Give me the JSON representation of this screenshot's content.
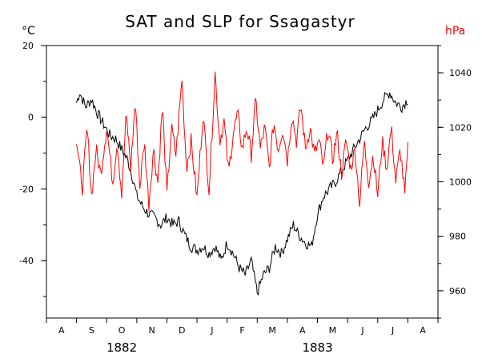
{
  "chart_data": {
    "type": "line",
    "title": "SAT and SLP for Ssagastyr",
    "y_left_unit": "°C",
    "y_right_unit": "hPa",
    "y_left_ticks": [
      20,
      0,
      -20,
      -40
    ],
    "y_right_ticks": [
      1040,
      1020,
      1000,
      980,
      960
    ],
    "ylim_left": [
      -56,
      20
    ],
    "ylim_right": [
      950,
      1050
    ],
    "x_month_labels": [
      "A",
      "S",
      "O",
      "N",
      "D",
      "J",
      "F",
      "M",
      "A",
      "M",
      "J",
      "J",
      "A"
    ],
    "x_year_labels": [
      "1882",
      "1883"
    ],
    "colors": {
      "SAT": "#000000",
      "SLP": "#ff0000"
    },
    "series": [
      {
        "key": "SAT",
        "axis": "left",
        "color": "#000000",
        "x_start_month": 1.0,
        "x_end_month": 12.0,
        "anchors": [
          [
            1.0,
            4
          ],
          [
            1.1,
            7
          ],
          [
            1.3,
            3
          ],
          [
            1.5,
            5
          ],
          [
            1.7,
            1
          ],
          [
            1.9,
            -2
          ],
          [
            2.1,
            -5
          ],
          [
            2.3,
            -6
          ],
          [
            2.5,
            -9
          ],
          [
            2.7,
            -12
          ],
          [
            2.9,
            -18
          ],
          [
            3.0,
            -22
          ],
          [
            3.2,
            -25
          ],
          [
            3.4,
            -27
          ],
          [
            3.6,
            -28
          ],
          [
            3.8,
            -30
          ],
          [
            4.0,
            -28
          ],
          [
            4.2,
            -30
          ],
          [
            4.4,
            -29
          ],
          [
            4.6,
            -33
          ],
          [
            4.8,
            -36
          ],
          [
            5.0,
            -37
          ],
          [
            5.2,
            -36
          ],
          [
            5.4,
            -38
          ],
          [
            5.6,
            -36
          ],
          [
            5.8,
            -40
          ],
          [
            6.0,
            -35
          ],
          [
            6.2,
            -38
          ],
          [
            6.4,
            -42
          ],
          [
            6.6,
            -44
          ],
          [
            6.8,
            -40
          ],
          [
            7.0,
            -49
          ],
          [
            7.2,
            -44
          ],
          [
            7.4,
            -42
          ],
          [
            7.6,
            -36
          ],
          [
            7.8,
            -38
          ],
          [
            8.0,
            -34
          ],
          [
            8.2,
            -30
          ],
          [
            8.4,
            -33
          ],
          [
            8.6,
            -35
          ],
          [
            8.8,
            -36
          ],
          [
            9.0,
            -27
          ],
          [
            9.2,
            -22
          ],
          [
            9.4,
            -20
          ],
          [
            9.6,
            -18
          ],
          [
            9.8,
            -15
          ],
          [
            10.0,
            -12
          ],
          [
            10.2,
            -9
          ],
          [
            10.4,
            -6
          ],
          [
            10.6,
            -3
          ],
          [
            10.8,
            -1
          ],
          [
            11.0,
            2
          ],
          [
            11.2,
            5
          ],
          [
            11.4,
            7
          ],
          [
            11.6,
            4
          ],
          [
            11.8,
            3
          ],
          [
            12.0,
            5
          ]
        ]
      },
      {
        "key": "SLP",
        "axis": "right",
        "color": "#ff0000",
        "x_start_month": 1.0,
        "x_end_month": 12.0,
        "anchors": [
          [
            1.0,
            1015
          ],
          [
            1.1,
            1005
          ],
          [
            1.2,
            998
          ],
          [
            1.35,
            1020
          ],
          [
            1.5,
            995
          ],
          [
            1.65,
            1012
          ],
          [
            1.8,
            1003
          ],
          [
            2.0,
            1020
          ],
          [
            2.1,
            1010
          ],
          [
            2.2,
            1000
          ],
          [
            2.35,
            1015
          ],
          [
            2.5,
            995
          ],
          [
            2.65,
            1025
          ],
          [
            2.8,
            1005
          ],
          [
            2.95,
            1030
          ],
          [
            3.1,
            998
          ],
          [
            3.25,
            1015
          ],
          [
            3.4,
            992
          ],
          [
            3.55,
            1012
          ],
          [
            3.7,
            1000
          ],
          [
            3.85,
            1028
          ],
          [
            4.0,
            995
          ],
          [
            4.15,
            1020
          ],
          [
            4.3,
            1010
          ],
          [
            4.5,
            1038
          ],
          [
            4.65,
            1005
          ],
          [
            4.8,
            1015
          ],
          [
            5.0,
            994
          ],
          [
            5.2,
            1025
          ],
          [
            5.4,
            997
          ],
          [
            5.6,
            1040
          ],
          [
            5.75,
            1015
          ],
          [
            5.9,
            1022
          ],
          [
            6.05,
            1003
          ],
          [
            6.2,
            1018
          ],
          [
            6.35,
            1025
          ],
          [
            6.5,
            1012
          ],
          [
            6.65,
            1020
          ],
          [
            6.8,
            1010
          ],
          [
            6.95,
            1030
          ],
          [
            7.1,
            1012
          ],
          [
            7.25,
            1020
          ],
          [
            7.4,
            1005
          ],
          [
            7.55,
            1022
          ],
          [
            7.7,
            1012
          ],
          [
            7.85,
            1020
          ],
          [
            8.0,
            1008
          ],
          [
            8.15,
            1025
          ],
          [
            8.3,
            1015
          ],
          [
            8.45,
            1028
          ],
          [
            8.6,
            1012
          ],
          [
            8.75,
            1020
          ],
          [
            8.9,
            1010
          ],
          [
            9.05,
            1015
          ],
          [
            9.2,
            1005
          ],
          [
            9.35,
            1020
          ],
          [
            9.5,
            1008
          ],
          [
            9.65,
            1018
          ],
          [
            9.8,
            1003
          ],
          [
            9.95,
            1015
          ],
          [
            10.1,
            1005
          ],
          [
            10.25,
            1012
          ],
          [
            10.4,
            992
          ],
          [
            10.55,
            1015
          ],
          [
            10.7,
            1000
          ],
          [
            10.85,
            1010
          ],
          [
            11.0,
            995
          ],
          [
            11.15,
            1015
          ],
          [
            11.3,
            1005
          ],
          [
            11.45,
            1020
          ],
          [
            11.6,
            1000
          ],
          [
            11.75,
            1012
          ],
          [
            11.9,
            995
          ],
          [
            12.0,
            1012
          ]
        ]
      }
    ]
  }
}
